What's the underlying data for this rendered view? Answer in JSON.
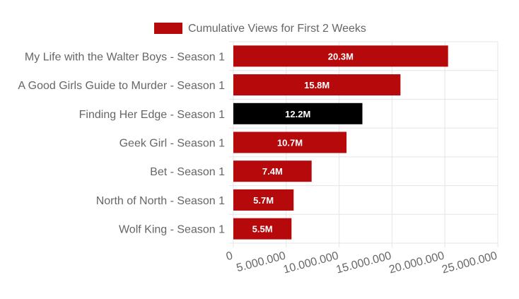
{
  "chart_data": {
    "type": "bar",
    "orientation": "horizontal",
    "legend": {
      "position": "top",
      "label": "Cumulative Views for First 2 Weeks"
    },
    "categories": [
      "My Life with the Walter Boys - Season 1",
      "A Good Girls Guide to Murder - Season 1",
      "Finding Her Edge - Season 1",
      "Geek Girl - Season 1",
      "Bet - Season 1",
      "North of North - Season 1",
      "Wolf King - Season 1"
    ],
    "series": [
      {
        "name": "Cumulative Views for First 2 Weeks",
        "values": [
          20300000,
          15800000,
          12200000,
          10700000,
          7400000,
          5700000,
          5500000
        ],
        "data_labels": [
          "20.3M",
          "15.8M",
          "12.2M",
          "10.7M",
          "7.4M",
          "5.7M",
          "5.5M"
        ],
        "colors": [
          "#b5090c",
          "#b5090c",
          "#000000",
          "#b5090c",
          "#b5090c",
          "#b5090c",
          "#b5090c"
        ]
      }
    ],
    "xlim": [
      0,
      25000000
    ],
    "x_ticks": [
      0,
      5000000,
      10000000,
      15000000,
      20000000,
      25000000
    ],
    "x_tick_labels": [
      "0",
      "5.000.000",
      "10.000.000",
      "15.000.000",
      "20.000.000",
      "25.000.000"
    ],
    "grid": true,
    "colors": {
      "primary": "#b5090c",
      "highlight": "#000000",
      "grid": "#e5e5e5",
      "text": "#666666"
    }
  }
}
